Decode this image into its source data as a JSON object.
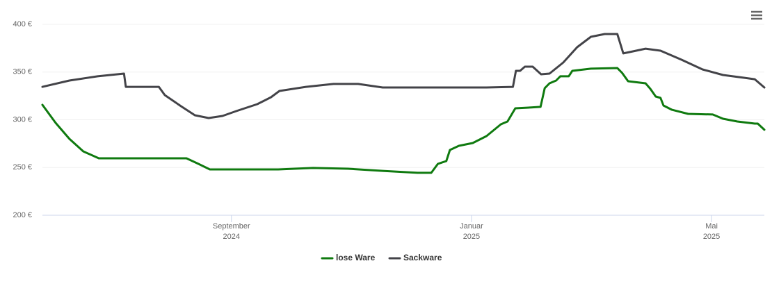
{
  "chart_data": {
    "type": "line",
    "xlim": [
      4.85,
      16.88
    ],
    "xticks": [
      {
        "value": 8,
        "label": "September",
        "year": "2024"
      },
      {
        "value": 12,
        "label": "Januar",
        "year": "2025"
      },
      {
        "value": 16,
        "label": "Mai",
        "year": "2025"
      }
    ],
    "ylim": [
      200,
      400
    ],
    "yticks": [
      {
        "value": 200,
        "label": "200 €"
      },
      {
        "value": 250,
        "label": "250 €"
      },
      {
        "value": 300,
        "label": "300 €"
      },
      {
        "value": 350,
        "label": "350 €"
      },
      {
        "value": 400,
        "label": "400 €"
      }
    ],
    "grid": true,
    "legend": "bottom",
    "series": [
      {
        "name": "lose Ware",
        "color": "#0f7a0f",
        "x": [
          4.85,
          5.07,
          5.3,
          5.53,
          5.79,
          6.46,
          7.25,
          7.45,
          7.64,
          8.78,
          9.36,
          9.94,
          10.52,
          11.1,
          11.33,
          11.44,
          11.58,
          11.64,
          11.79,
          12.02,
          12.25,
          12.49,
          12.6,
          12.73,
          12.95,
          13.15,
          13.22,
          13.3,
          13.41,
          13.48,
          13.62,
          13.68,
          13.99,
          14.43,
          14.51,
          14.61,
          14.9,
          14.98,
          15.07,
          15.15,
          15.2,
          15.34,
          15.61,
          16.02,
          16.19,
          16.43,
          16.72,
          16.77,
          16.88
        ],
        "values": [
          315.6,
          296.7,
          280,
          266.9,
          259.6,
          259.6,
          259.6,
          253.8,
          248,
          248,
          249.5,
          248.7,
          246.5,
          244.4,
          244.4,
          253.8,
          256.7,
          268.4,
          272.7,
          275.6,
          282.9,
          295.3,
          298.2,
          312,
          312.7,
          313.5,
          333.1,
          338.2,
          341.1,
          345.5,
          345.5,
          351.3,
          353.5,
          354.2,
          349.1,
          340.4,
          338.2,
          332.4,
          324.4,
          322.9,
          314.9,
          310.5,
          306.2,
          305.5,
          301.1,
          298.2,
          296,
          296,
          289.5
        ]
      },
      {
        "name": "Sackware",
        "color": "#434348",
        "x": [
          4.85,
          5.3,
          5.77,
          6.21,
          6.24,
          6.79,
          6.89,
          7.16,
          7.39,
          7.62,
          7.85,
          8.08,
          8.43,
          8.66,
          8.8,
          9.24,
          9.7,
          10.11,
          10.52,
          11.1,
          12.25,
          12.69,
          12.74,
          12.81,
          12.89,
          13.02,
          13.16,
          13.3,
          13.53,
          13.76,
          13.99,
          14.22,
          14.43,
          14.53,
          14.69,
          14.9,
          15.15,
          15.5,
          15.85,
          16.19,
          16.54,
          16.72,
          16.88
        ],
        "values": [
          334.5,
          341.1,
          345.5,
          348.4,
          334.5,
          334.5,
          325.8,
          314.2,
          304.7,
          301.8,
          304,
          309.1,
          316.4,
          323.6,
          330.2,
          334.5,
          337.5,
          337.5,
          333.8,
          333.8,
          333.8,
          334.5,
          351.3,
          351.3,
          355.6,
          355.6,
          347.6,
          348.4,
          360,
          376,
          386.9,
          389.8,
          389.8,
          369.5,
          371.6,
          374.5,
          372.4,
          362.9,
          352.7,
          346.9,
          344,
          342.5,
          333.8
        ]
      }
    ]
  }
}
